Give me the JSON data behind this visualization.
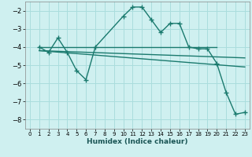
{
  "xlabel": "Humidex (Indice chaleur)",
  "ylabel": "",
  "background_color": "#cff0f0",
  "grid_color": "#aadddd",
  "line_color": "#1a7a6e",
  "xlim": [
    -0.5,
    23.5
  ],
  "ylim": [
    -8.5,
    -1.5
  ],
  "yticks": [
    -8,
    -7,
    -6,
    -5,
    -4,
    -3,
    -2
  ],
  "xticks": [
    0,
    1,
    2,
    3,
    4,
    5,
    6,
    7,
    8,
    9,
    10,
    11,
    12,
    13,
    14,
    15,
    16,
    17,
    18,
    19,
    20,
    21,
    22,
    23
  ],
  "series": [
    {
      "x": [
        1,
        2,
        3,
        4,
        5,
        6,
        7,
        10,
        11,
        12,
        13,
        14,
        15,
        16,
        17,
        18,
        19,
        20,
        21,
        22,
        23
      ],
      "y": [
        -4.0,
        -4.3,
        -3.5,
        -4.3,
        -5.3,
        -5.8,
        -4.0,
        -2.3,
        -1.8,
        -1.8,
        -2.5,
        -3.2,
        -2.7,
        -2.7,
        -4.0,
        -4.1,
        -4.1,
        -4.9,
        -6.5,
        -7.7,
        -7.6
      ]
    },
    {
      "x": [
        1,
        20
      ],
      "y": [
        -4.0,
        -4.0
      ]
    },
    {
      "x": [
        1,
        23
      ],
      "y": [
        -4.2,
        -4.6
      ]
    },
    {
      "x": [
        1,
        23
      ],
      "y": [
        -4.2,
        -5.1
      ]
    }
  ]
}
